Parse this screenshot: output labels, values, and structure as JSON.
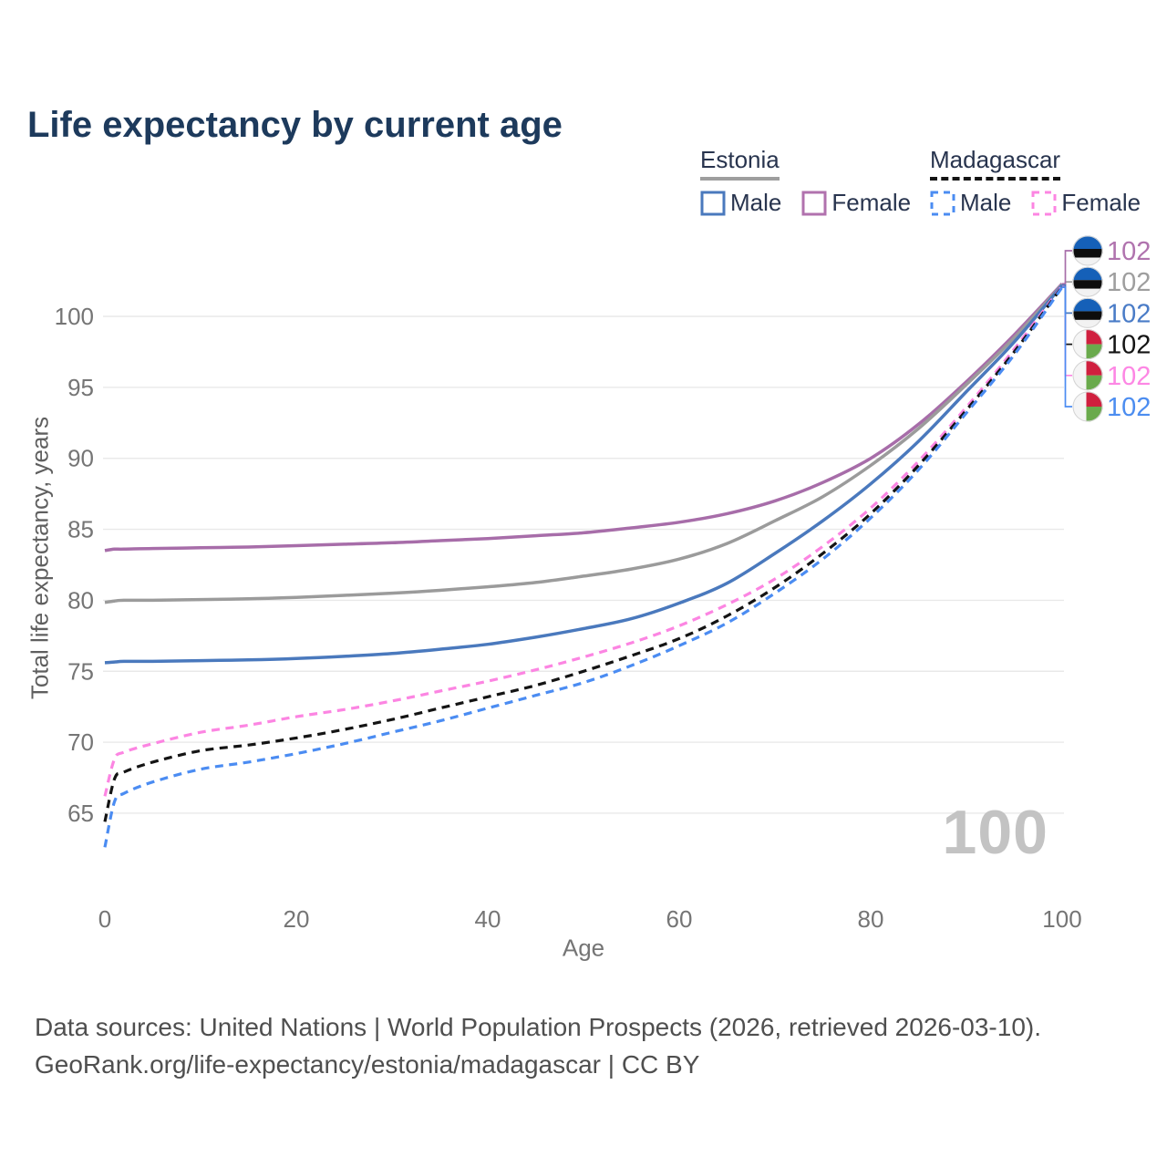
{
  "title": "Life expectancy by current age",
  "legend": {
    "groups": [
      {
        "label": "Estonia",
        "underline_style": "solid",
        "underline_color": "#9e9e9e",
        "items": [
          {
            "label": "Male",
            "color": "#4a79bd",
            "dashed": false
          },
          {
            "label": "Female",
            "color": "#b172ae",
            "dashed": false
          }
        ]
      },
      {
        "label": "Madagascar",
        "underline_style": "dashed",
        "underline_color": "#141414",
        "items": [
          {
            "label": "Male",
            "color": "#4b8cf2",
            "dashed": true
          },
          {
            "label": "Female",
            "color": "#fc85e2",
            "dashed": true
          }
        ]
      }
    ]
  },
  "chart_data": {
    "type": "line",
    "title": "Life expectancy by current age",
    "xlabel": "Age",
    "ylabel": "Total life expectancy, years",
    "xlim": [
      0,
      100
    ],
    "ylim": [
      62,
      103
    ],
    "x_ticks": [
      0,
      20,
      40,
      60,
      80,
      100
    ],
    "y_ticks": [
      65,
      70,
      75,
      80,
      85,
      90,
      95,
      100
    ],
    "grid": "horizontal-only",
    "legend_position": "top-right",
    "watermark": "100",
    "x": [
      0,
      1,
      2,
      5,
      10,
      15,
      20,
      25,
      30,
      35,
      40,
      45,
      50,
      55,
      60,
      65,
      70,
      75,
      80,
      85,
      90,
      95,
      100
    ],
    "series": [
      {
        "id": "est_f",
        "name": "Estonia Female",
        "country": "Estonia",
        "sex": "Female",
        "color": "#a76da9",
        "dashed": false,
        "values": [
          83.5,
          83.6,
          83.6,
          83.65,
          83.7,
          83.75,
          83.85,
          83.95,
          84.05,
          84.2,
          84.35,
          84.55,
          84.75,
          85.1,
          85.5,
          86.1,
          87.0,
          88.3,
          90.0,
          92.4,
          95.4,
          98.7,
          102.3
        ],
        "end_label": "102"
      },
      {
        "id": "est_all",
        "name": "Estonia (both sexes)",
        "country": "Estonia",
        "sex": "Both",
        "color": "#9b9b9b",
        "dashed": false,
        "values": [
          79.85,
          79.95,
          80.0,
          80.0,
          80.05,
          80.1,
          80.2,
          80.35,
          80.5,
          80.7,
          80.95,
          81.25,
          81.7,
          82.2,
          82.9,
          84.0,
          85.6,
          87.3,
          89.5,
          92.1,
          95.2,
          98.5,
          102.25
        ],
        "end_label": "102"
      },
      {
        "id": "est_m",
        "name": "Estonia Male",
        "country": "Estonia",
        "sex": "Male",
        "color": "#4a79bd",
        "dashed": false,
        "values": [
          75.6,
          75.65,
          75.7,
          75.7,
          75.75,
          75.8,
          75.9,
          76.05,
          76.25,
          76.55,
          76.9,
          77.4,
          78.0,
          78.7,
          79.8,
          81.2,
          83.3,
          85.6,
          88.2,
          91.2,
          94.7,
          98.2,
          102.2
        ],
        "end_label": "102"
      },
      {
        "id": "mdg_f",
        "name": "Madagascar Female",
        "country": "Madagascar",
        "sex": "Female",
        "color": "#fc85e2",
        "dashed": true,
        "values": [
          66.2,
          68.8,
          69.3,
          69.9,
          70.7,
          71.2,
          71.8,
          72.3,
          72.9,
          73.6,
          74.3,
          75.1,
          76.0,
          77.0,
          78.2,
          79.7,
          81.5,
          83.8,
          86.5,
          89.8,
          93.6,
          97.7,
          102.15
        ],
        "end_label": "102"
      },
      {
        "id": "mdg_all",
        "name": "Madagascar (both sexes)",
        "country": "Madagascar",
        "sex": "Both",
        "color": "#141414",
        "dashed": true,
        "values": [
          64.4,
          67.4,
          67.9,
          68.6,
          69.4,
          69.8,
          70.3,
          70.9,
          71.6,
          72.4,
          73.2,
          74.0,
          75.0,
          76.1,
          77.3,
          78.9,
          80.9,
          83.3,
          86.1,
          89.5,
          93.4,
          97.5,
          102.1
        ],
        "end_label": "102"
      },
      {
        "id": "mdg_m",
        "name": "Madagascar Male",
        "country": "Madagascar",
        "sex": "Male",
        "color": "#4b8cf2",
        "dashed": true,
        "values": [
          62.6,
          65.8,
          66.4,
          67.2,
          68.1,
          68.6,
          69.2,
          69.9,
          70.7,
          71.5,
          72.4,
          73.3,
          74.2,
          75.4,
          76.8,
          78.4,
          80.5,
          82.9,
          85.8,
          89.2,
          93.2,
          97.3,
          102.05
        ],
        "end_label": "102"
      }
    ],
    "end_labels": [
      {
        "series_id": "est_f",
        "flag": "estonia",
        "value": "102",
        "color": "#b073ae"
      },
      {
        "series_id": "est_all",
        "flag": "estonia",
        "value": "102",
        "color": "#9e9e9e"
      },
      {
        "series_id": "est_m",
        "flag": "estonia",
        "value": "102",
        "color": "#4a7cc7"
      },
      {
        "series_id": "mdg_all",
        "flag": "madagascar",
        "value": "102",
        "color": "#141414"
      },
      {
        "series_id": "mdg_f",
        "flag": "madagascar",
        "value": "102",
        "color": "#fd87e4"
      },
      {
        "series_id": "mdg_m",
        "flag": "madagascar",
        "value": "102",
        "color": "#4c8df0"
      }
    ],
    "flag_colors": {
      "estonia": {
        "blue": "#1560b8",
        "black": "#0d0d0d",
        "white": "#f2f2f2"
      },
      "madagascar": {
        "white": "#f5f5f5",
        "red": "#d01f3e",
        "green": "#6aaa4c"
      }
    }
  },
  "footer": {
    "line1": "Data sources: United Nations | World Population Prospects (2026, retrieved 2026-03-10).",
    "line2": "GeoRank.org/life-expectancy/estonia/madagascar | CC BY"
  }
}
